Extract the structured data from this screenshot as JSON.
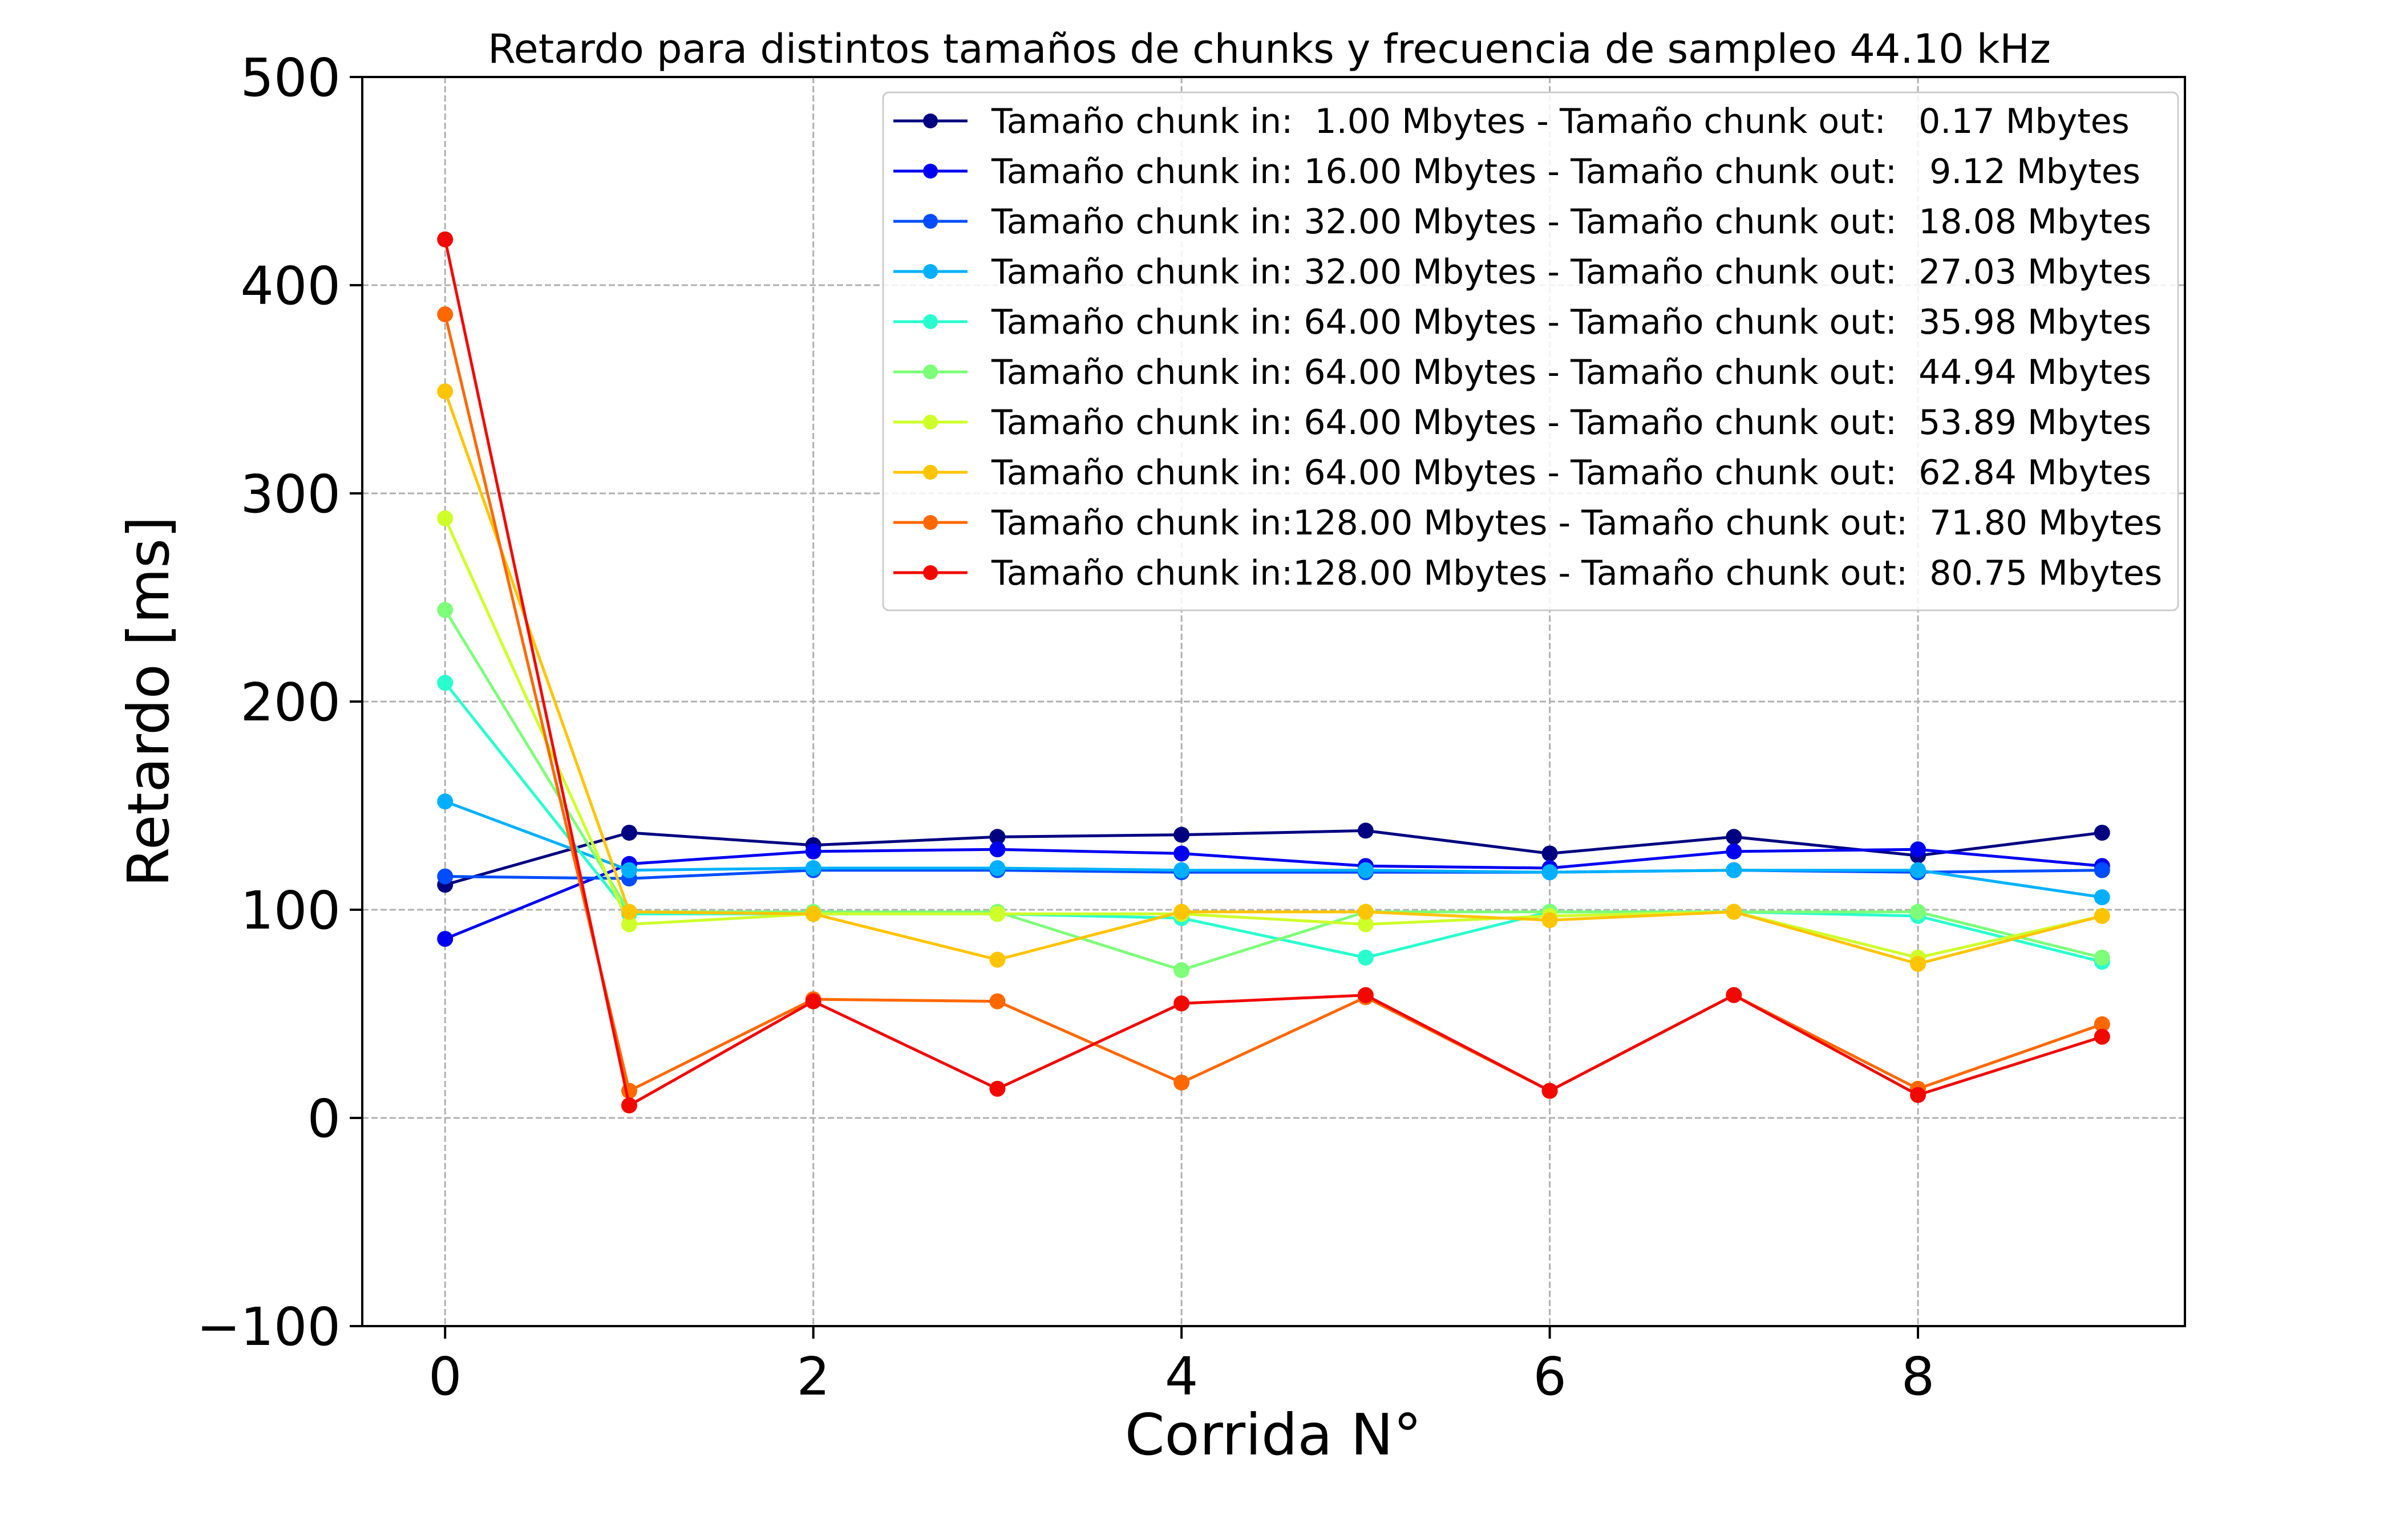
{
  "chart_data": {
    "type": "line",
    "title": "Retardo para distintos tamaños de chunks y frecuencia de sampleo  44.10 kHz",
    "xlabel": "Corrida N°",
    "ylabel": "Retardo [ms]",
    "xlim": [
      -0.45,
      9.45
    ],
    "ylim": [
      -100,
      500
    ],
    "grid": true,
    "legend_position": "top-right",
    "x": [
      0,
      1,
      2,
      3,
      4,
      5,
      6,
      7,
      8,
      9
    ],
    "xticks": [
      0,
      2,
      4,
      6,
      8
    ],
    "xtick_labels": [
      "0",
      "2",
      "4",
      "6",
      "8"
    ],
    "yticks": [
      -100,
      0,
      100,
      200,
      300,
      400,
      500
    ],
    "ytick_labels": [
      "−100",
      "0",
      "100",
      "200",
      "300",
      "400",
      "500"
    ],
    "series": [
      {
        "name": "Tamaño chunk in:  1.00 Mbytes - Tamaño chunk out:   0.17 Mbytes",
        "color": "#000080",
        "values": [
          112,
          137,
          131,
          135,
          136,
          138,
          127,
          135,
          126,
          137
        ]
      },
      {
        "name": "Tamaño chunk in: 16.00 Mbytes - Tamaño chunk out:   9.12 Mbytes",
        "color": "#0000f1",
        "values": [
          86,
          122,
          128,
          129,
          127,
          121,
          120,
          128,
          129,
          121
        ]
      },
      {
        "name": "Tamaño chunk in: 32.00 Mbytes - Tamaño chunk out:  18.08 Mbytes",
        "color": "#004cff",
        "values": [
          116,
          115,
          119,
          119,
          118,
          118,
          118,
          119,
          118,
          119
        ]
      },
      {
        "name": "Tamaño chunk in: 32.00 Mbytes - Tamaño chunk out:  27.03 Mbytes",
        "color": "#00b0ff",
        "values": [
          152,
          119,
          120,
          120,
          119,
          119,
          118,
          119,
          119,
          106
        ]
      },
      {
        "name": "Tamaño chunk in: 64.00 Mbytes - Tamaño chunk out:  35.98 Mbytes",
        "color": "#29ffce",
        "values": [
          209,
          98,
          98,
          98,
          96,
          77,
          99,
          99,
          97,
          75
        ]
      },
      {
        "name": "Tamaño chunk in: 64.00 Mbytes - Tamaño chunk out:  44.94 Mbytes",
        "color": "#7dff7a",
        "values": [
          244,
          99,
          99,
          99,
          71,
          99,
          99,
          99,
          99,
          77
        ]
      },
      {
        "name": "Tamaño chunk in: 64.00 Mbytes - Tamaño chunk out:  53.89 Mbytes",
        "color": "#ceff29",
        "values": [
          288,
          93,
          98,
          98,
          98,
          93,
          97,
          99,
          77,
          97
        ]
      },
      {
        "name": "Tamaño chunk in: 64.00 Mbytes - Tamaño chunk out:  62.84 Mbytes",
        "color": "#ffc400",
        "values": [
          349,
          99,
          98,
          76,
          99,
          99,
          95,
          99,
          74,
          97
        ]
      },
      {
        "name": "Tamaño chunk in:128.00 Mbytes - Tamaño chunk out:  71.80 Mbytes",
        "color": "#ff6800",
        "values": [
          386,
          13,
          57,
          56,
          17,
          58,
          13,
          59,
          14,
          45
        ]
      },
      {
        "name": "Tamaño chunk in:128.00 Mbytes - Tamaño chunk out:  80.75 Mbytes",
        "color": "#f10800",
        "values": [
          422,
          6,
          56,
          14,
          55,
          59,
          13,
          59,
          11,
          39
        ]
      }
    ]
  }
}
